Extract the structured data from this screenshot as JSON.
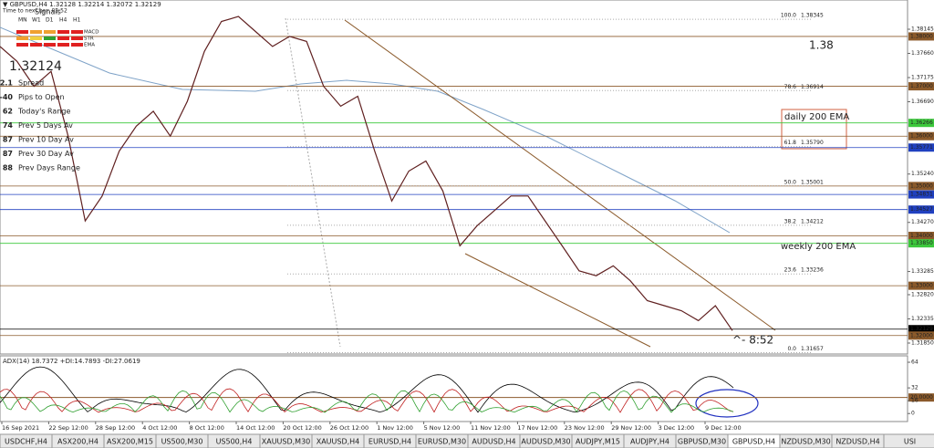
{
  "header": {
    "symbol_line": "▼ GBPUSD,H4  1.32128 1.32214 1.32072 1.32129",
    "time_line": "Time to next bar: 02:52"
  },
  "signals": {
    "title": "Signals",
    "timeframes": [
      "MN",
      "W1",
      "D1",
      "H4",
      "H1"
    ],
    "rows": [
      {
        "name": "MACD",
        "colors": [
          "#e02020",
          "#f0a030",
          "#f0a030",
          "#e02020",
          "#e02020"
        ]
      },
      {
        "name": "STR",
        "colors": [
          "#f0a030",
          "#f0d040",
          "#30a030",
          "#e02020",
          "#e02020"
        ]
      },
      {
        "name": "EMA",
        "colors": [
          "#e02020",
          "#e02020",
          "#e02020",
          "#e02020",
          "#e02020"
        ]
      }
    ]
  },
  "price": "1.32124",
  "stats": [
    {
      "value": "2.1",
      "label": "Spread",
      "color": "#e69500"
    },
    {
      "value": "-40",
      "label": "Pips to Open",
      "color": "#d02020"
    },
    {
      "value": "62",
      "label": "Today's Range",
      "color": "#208020"
    },
    {
      "value": "74",
      "label": "Prev 5 Days Av",
      "color": "#208020"
    },
    {
      "value": "87",
      "label": "Prev 10 Day Av",
      "color": "#208020"
    },
    {
      "value": "87",
      "label": "Prev 30 Day Av",
      "color": "#208020"
    },
    {
      "value": "88",
      "label": "Prev Days Range",
      "color": "#208020"
    }
  ],
  "price_chart": {
    "ylim": [
      1.3163,
      1.38731
    ],
    "yticks": [
      {
        "value": 1.38145,
        "label": "1.38145"
      },
      {
        "value": 1.3766,
        "label": "1.37660"
      },
      {
        "value": 1.37175,
        "label": "1.37175"
      },
      {
        "value": 1.3669,
        "label": "1.36690"
      },
      {
        "value": 1.3524,
        "label": "1.35240"
      },
      {
        "value": 1.3427,
        "label": "1.34270"
      },
      {
        "value": 1.33285,
        "label": "1.33285"
      },
      {
        "value": 1.3282,
        "label": "1.32820"
      },
      {
        "value": 1.32335,
        "label": "1.32335"
      },
      {
        "value": 1.3185,
        "label": "1.31850"
      }
    ],
    "values": [
      1.378,
      1.375,
      1.37,
      1.373,
      1.36,
      1.343,
      1.348,
      1.357,
      1.362,
      1.365,
      1.36,
      1.367,
      1.377,
      1.383,
      1.384,
      1.381,
      1.378,
      1.38,
      1.379,
      1.37,
      1.366,
      1.368,
      1.357,
      1.347,
      1.353,
      1.355,
      1.349,
      1.338,
      1.342,
      1.345,
      1.348,
      1.348,
      1.343,
      1.338,
      1.333,
      1.332,
      1.334,
      1.331,
      1.327,
      1.326,
      1.325,
      1.323,
      1.326,
      1.321
    ],
    "levels": [
      {
        "value": 1.38,
        "label": "1.38000",
        "color": "#8b5a2b"
      },
      {
        "value": 1.37,
        "label": "1.37000",
        "color": "#8b5a2b"
      },
      {
        "value": 1.36266,
        "label": "1.36266",
        "color": "#3cc83c"
      },
      {
        "value": 1.36,
        "label": "1.36000",
        "color": "#8b5a2b"
      },
      {
        "value": 1.35771,
        "label": "1.35771",
        "color": "#2040c0"
      },
      {
        "value": 1.35,
        "label": "1.35000",
        "color": "#8b5a2b"
      },
      {
        "value": 1.34831,
        "label": "1.34831",
        "color": "#2040c0"
      },
      {
        "value": 1.34527,
        "label": "1.34527",
        "color": "#2040c0"
      },
      {
        "value": 1.34,
        "label": "1.34000",
        "color": "#8b5a2b"
      },
      {
        "value": 1.3385,
        "label": "1.33850",
        "color": "#3cc83c"
      },
      {
        "value": 1.33,
        "label": "1.33000",
        "color": "#8b5a2b"
      },
      {
        "value": 1.32129,
        "label": "1.32129",
        "color": "#000000"
      },
      {
        "value": 1.32,
        "label": "1.32000",
        "color": "#8b5a2b"
      }
    ],
    "fib": [
      {
        "ratio": "100.0",
        "price": "1.38345",
        "value": 1.38345
      },
      {
        "ratio": "78.6",
        "price": "1.36914",
        "value": 1.36914
      },
      {
        "ratio": "61.8",
        "price": "1.35790",
        "value": 1.3579
      },
      {
        "ratio": "50.0",
        "price": "1.35001",
        "value": 1.35001
      },
      {
        "ratio": "38.2",
        "price": "1.34212",
        "value": 1.34212
      },
      {
        "ratio": "23.6",
        "price": "1.33236",
        "value": 1.33236
      },
      {
        "ratio": "0.0",
        "price": "1.31657",
        "value": 1.31657
      }
    ]
  },
  "annotations": {
    "round": "1.38",
    "daily": "daily 200 EMA",
    "weekly": "weekly 200 EMA",
    "timer": "^- 8:52"
  },
  "adx": {
    "label": "ADX(14) 18.7372 +DI:14.7893 -DI:27.0619",
    "ylim": [
      -10,
      72
    ],
    "yticks": [
      64,
      32,
      {
        "value": 20,
        "label": "20.0000"
      },
      16,
      0
    ]
  },
  "dates": [
    "16 Sep 2021",
    "22 Sep 12:00",
    "28 Sep 12:00",
    "4 Oct 12:00",
    "8 Oct 12:00",
    "14 Oct 12:00",
    "20 Oct 12:00",
    "26 Oct 12:00",
    "1 Nov 12:00",
    "5 Nov 12:00",
    "11 Nov 12:00",
    "17 Nov 12:00",
    "23 Nov 12:00",
    "29 Nov 12:00",
    "3 Dec 12:00",
    "9 Dec 12:00"
  ],
  "tabs": [
    "USDCHF,H4",
    "ASX200,H4",
    "ASX200,M15",
    "US500,M30",
    "US500,H4",
    "XAUUSD,M30",
    "XAUUSD,H4",
    "EURUSD,H4",
    "EURUSD,M30",
    "AUDUSD,H4",
    "AUDUSD,M30",
    "AUDJPY,M15",
    "AUDJPY,H4",
    "GBPUSD,M30",
    "GBPUSD,H4",
    "NZDUSD,M30",
    "NZDUSD,H4",
    "USI"
  ],
  "active_tab": 14
}
